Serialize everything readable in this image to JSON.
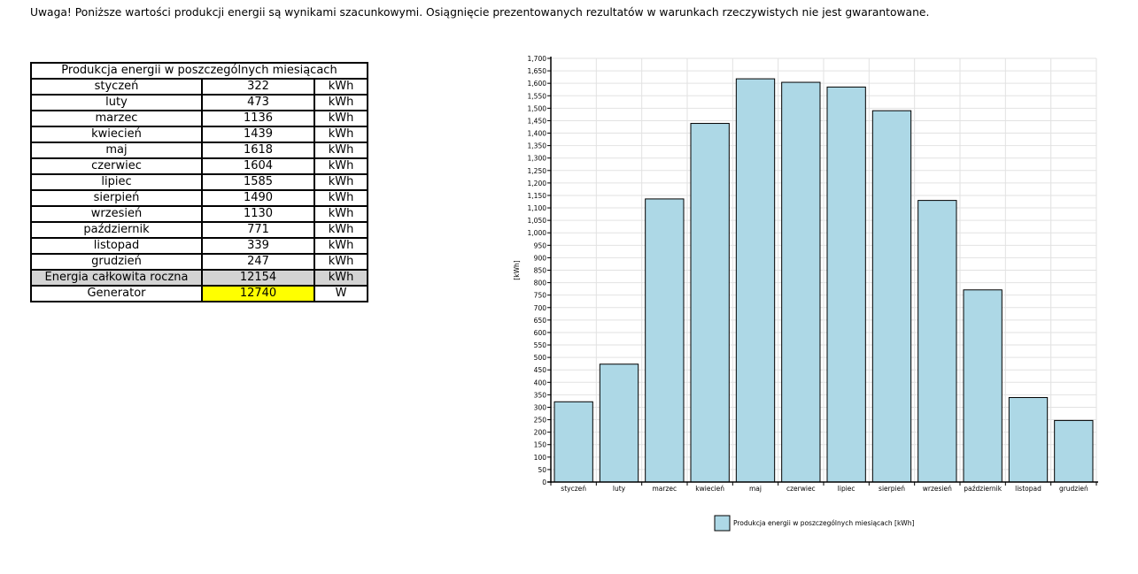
{
  "warning_text": "Uwaga! Poniższe wartości produkcji energii są wynikami szacunkowymi. Osiągnięcie prezentowanych rezultatów w warunkach rzeczywistych nie jest gwarantowane.",
  "table": {
    "title": "Produkcja energii w poszczególnych miesiącach",
    "rows": [
      {
        "month": "styczeń",
        "value": "322",
        "unit": "kWh"
      },
      {
        "month": "luty",
        "value": "473",
        "unit": "kWh"
      },
      {
        "month": "marzec",
        "value": "1136",
        "unit": "kWh"
      },
      {
        "month": "kwiecień",
        "value": "1439",
        "unit": "kWh"
      },
      {
        "month": "maj",
        "value": "1618",
        "unit": "kWh"
      },
      {
        "month": "czerwiec",
        "value": "1604",
        "unit": "kWh"
      },
      {
        "month": "lipiec",
        "value": "1585",
        "unit": "kWh"
      },
      {
        "month": "sierpień",
        "value": "1490",
        "unit": "kWh"
      },
      {
        "month": "wrzesień",
        "value": "1130",
        "unit": "kWh"
      },
      {
        "month": "październik",
        "value": "771",
        "unit": "kWh"
      },
      {
        "month": "listopad",
        "value": "339",
        "unit": "kWh"
      },
      {
        "month": "grudzień",
        "value": "247",
        "unit": "kWh"
      }
    ],
    "total": {
      "label": "Energia całkowita roczna",
      "value": "12154",
      "unit": "kWh"
    },
    "generator": {
      "label": "Generator",
      "value": "12740",
      "unit": "W"
    }
  },
  "colors": {
    "bar_fill": "#add8e6",
    "highlight": "#ffff00",
    "total_row": "#d3d3d3"
  },
  "chart_data": {
    "type": "bar",
    "categories": [
      "styczeń",
      "luty",
      "marzec",
      "kwiecień",
      "maj",
      "czerwiec",
      "lipiec",
      "sierpień",
      "wrzesień",
      "październik",
      "listopad",
      "grudzień"
    ],
    "series": [
      {
        "name": "Produkcja energii w poszczególnych miesiącach [kWh]",
        "values": [
          322,
          473,
          1136,
          1439,
          1618,
          1604,
          1585,
          1490,
          1130,
          771,
          339,
          247
        ]
      }
    ],
    "ylabel": "[kWh]",
    "ylim": [
      0,
      1700
    ],
    "ytick_step": 50,
    "grid": true,
    "legend_position": "bottom-center"
  }
}
